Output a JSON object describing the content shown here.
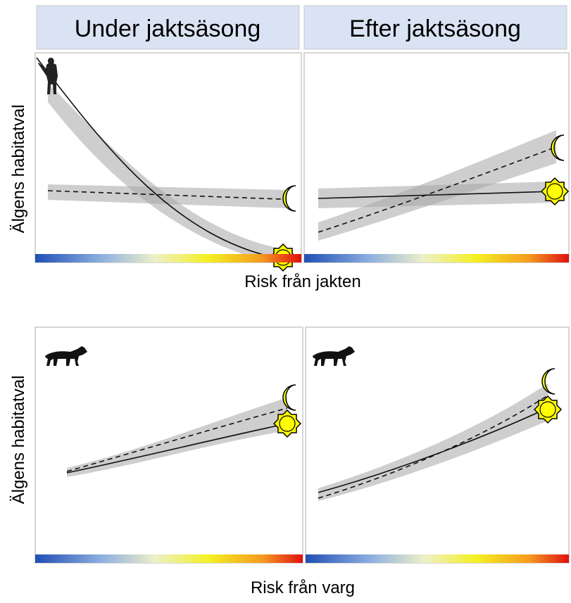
{
  "headers": {
    "left": "Under jaktsäsong",
    "right": "Efter jaktsäsong"
  },
  "top_row": {
    "y_label": "Älgens habitatval",
    "x_label": "Risk från jakten"
  },
  "bottom_row": {
    "y_label": "Älgens habitatval",
    "x_label": "Risk från varg"
  }
}
